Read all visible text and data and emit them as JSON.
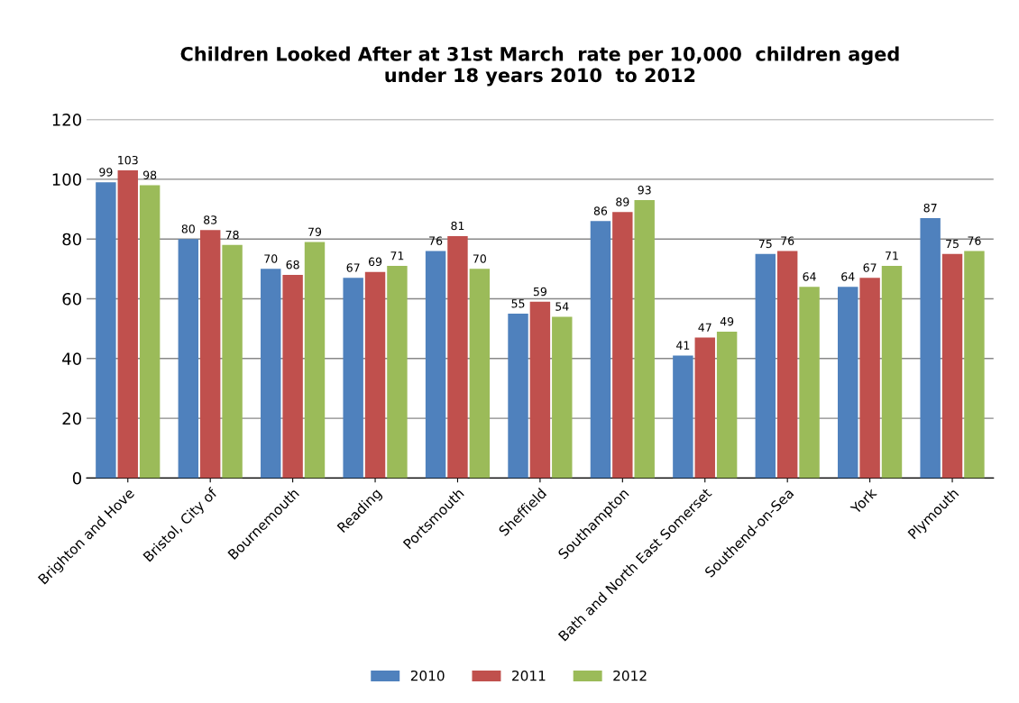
{
  "chart_data": {
    "type": "bar",
    "title": "Children Looked After at 31st March  rate per 10,000  children aged\nunder 18 years 2010  to 2012",
    "categories": [
      "Brighton and Hove",
      "Bristol, City of",
      "Bournemouth",
      "Reading",
      "Portsmouth",
      "Sheffield",
      "Southampton",
      "Bath and North East Somerset",
      "Southend-on-Sea",
      "York",
      "Plymouth"
    ],
    "series": [
      {
        "name": "2010",
        "color": "#4f81bd",
        "values": [
          99,
          80,
          70,
          67,
          76,
          55,
          86,
          41,
          75,
          64,
          87
        ]
      },
      {
        "name": "2011",
        "color": "#c0504d",
        "values": [
          103,
          83,
          68,
          69,
          81,
          59,
          89,
          47,
          76,
          67,
          75
        ]
      },
      {
        "name": "2012",
        "color": "#9bbb59",
        "values": [
          98,
          78,
          79,
          71,
          70,
          54,
          93,
          49,
          64,
          71,
          76
        ]
      }
    ],
    "ylim": [
      0,
      120
    ],
    "yticks": [
      0,
      20,
      40,
      60,
      80,
      100,
      120
    ],
    "grid": "y",
    "legend": "bottom",
    "data_labels": true
  }
}
